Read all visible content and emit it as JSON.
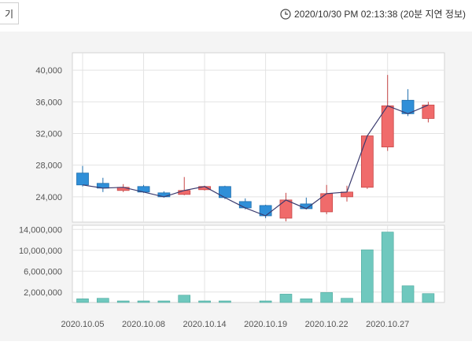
{
  "header": {
    "cut_button_label": "기",
    "timestamp": "2020/10/30 PM 02:13:38 (20분 지연 정보)"
  },
  "colors": {
    "up": "#f06b6b",
    "down": "#2f8fd8",
    "volume": "#6fc8be",
    "line": "#3a3a6e"
  },
  "chart_data": {
    "type": "candlestick",
    "price_axis": {
      "ticks": [
        "40,000",
        "36,000",
        "32,000",
        "28,000",
        "24,000"
      ],
      "tick_values": [
        40000,
        36000,
        32000,
        28000,
        24000
      ],
      "ylim": [
        20800,
        42200
      ]
    },
    "volume_axis": {
      "ticks": [
        "14,000,000",
        "10,000,000",
        "6,000,000",
        "2,000,000"
      ],
      "tick_values": [
        14000000,
        10000000,
        6000000,
        2000000
      ],
      "ylim": [
        0,
        14800000
      ]
    },
    "x_labels": [
      "2020.10.05",
      "2020.10.08",
      "2020.10.14",
      "2020.10.19",
      "2020.10.22",
      "2020.10.27"
    ],
    "x_label_indices": [
      0,
      3,
      6,
      9,
      12,
      15
    ],
    "candles": [
      {
        "open": 27000,
        "high": 27900,
        "low": 25300,
        "close": 25500
      },
      {
        "open": 25700,
        "high": 26400,
        "low": 24600,
        "close": 25100
      },
      {
        "open": 24800,
        "high": 25600,
        "low": 24600,
        "close": 25200
      },
      {
        "open": 25300,
        "high": 25500,
        "low": 24500,
        "close": 24600
      },
      {
        "open": 24500,
        "high": 24700,
        "low": 23900,
        "close": 24000
      },
      {
        "open": 24300,
        "high": 26500,
        "low": 24200,
        "close": 24800
      },
      {
        "open": 24900,
        "high": 25400,
        "low": 24800,
        "close": 25300
      },
      {
        "open": 25300,
        "high": 25400,
        "low": 23700,
        "close": 23900
      },
      {
        "open": 23400,
        "high": 23800,
        "low": 22400,
        "close": 22600
      },
      {
        "open": 22900,
        "high": 23000,
        "low": 21300,
        "close": 21600
      },
      {
        "open": 21300,
        "high": 24500,
        "low": 20900,
        "close": 23600
      },
      {
        "open": 23100,
        "high": 23900,
        "low": 22400,
        "close": 22500
      },
      {
        "open": 22100,
        "high": 25500,
        "low": 21800,
        "close": 24400
      },
      {
        "open": 24000,
        "high": 25400,
        "low": 23400,
        "close": 24600
      },
      {
        "open": 25200,
        "high": 31800,
        "low": 25000,
        "close": 31700
      },
      {
        "open": 30300,
        "high": 39400,
        "low": 29800,
        "close": 35500
      },
      {
        "open": 36200,
        "high": 37600,
        "low": 34200,
        "close": 34500
      },
      {
        "open": 33900,
        "high": 36000,
        "low": 33400,
        "close": 35600
      }
    ],
    "volumes": [
      700000,
      800000,
      300000,
      300000,
      300000,
      1400000,
      300000,
      300000,
      0,
      300000,
      1600000,
      700000,
      1900000,
      800000,
      10100000,
      13500000,
      3200000,
      1700000
    ],
    "close_line": [
      25500,
      25100,
      25200,
      24600,
      24000,
      24800,
      25300,
      23900,
      22600,
      21600,
      23600,
      22500,
      24400,
      24600,
      31700,
      35500,
      34500,
      35600
    ],
    "grid": true
  }
}
